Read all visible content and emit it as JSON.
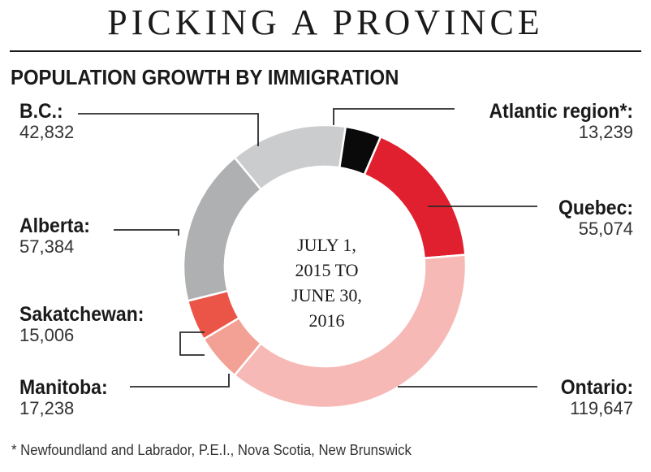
{
  "header": {
    "title": "PICKING A PROVINCE",
    "subtitle": "POPULATION GROWTH BY IMMIGRATION"
  },
  "center_label": [
    "JULY 1,",
    "2015 TO",
    "JUNE 30,",
    "2016"
  ],
  "footnote": "* Newfoundland and Labrador, P.E.I., Nova Scotia, New Brunswick",
  "chart_data": {
    "type": "pie",
    "donut": true,
    "title": "POPULATION GROWTH BY IMMIGRATION",
    "categories": [
      "Atlantic region*",
      "Quebec",
      "Ontario",
      "Manitoba",
      "Sakatchewan",
      "Alberta",
      "B.C."
    ],
    "values": [
      13239,
      55074,
      119647,
      17238,
      15006,
      57384,
      42832
    ],
    "value_labels": [
      "13,239",
      "55,074",
      "119,647",
      "17,238",
      "15,006",
      "57,384",
      "42,832"
    ],
    "name_labels": [
      "Atlantic region*:",
      "Quebec:",
      "Ontario:",
      "Manitoba:",
      "Sakatchewan:",
      "Alberta:",
      "B.C.:"
    ],
    "colors": [
      "#0a0a0a",
      "#e0202e",
      "#f6b9b5",
      "#f3a195",
      "#ea5547",
      "#aeb0b2",
      "#cbcccd"
    ],
    "legend": "none"
  }
}
